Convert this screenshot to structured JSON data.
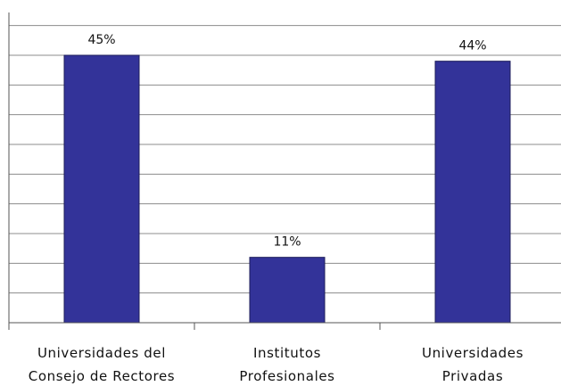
{
  "chart_data": {
    "type": "bar",
    "categories": [
      [
        "Universidades del",
        "Consejo de Rectores"
      ],
      [
        "Institutos",
        "Profesionales"
      ],
      [
        "Universidades",
        "Privadas"
      ]
    ],
    "values": [
      45,
      11,
      44
    ],
    "data_labels": [
      "45%",
      "11%",
      "44%"
    ],
    "title": "",
    "xlabel": "",
    "ylabel": "",
    "ylim": [
      0,
      45
    ],
    "grid": true,
    "legend": "none",
    "bar_color": "#333399"
  }
}
